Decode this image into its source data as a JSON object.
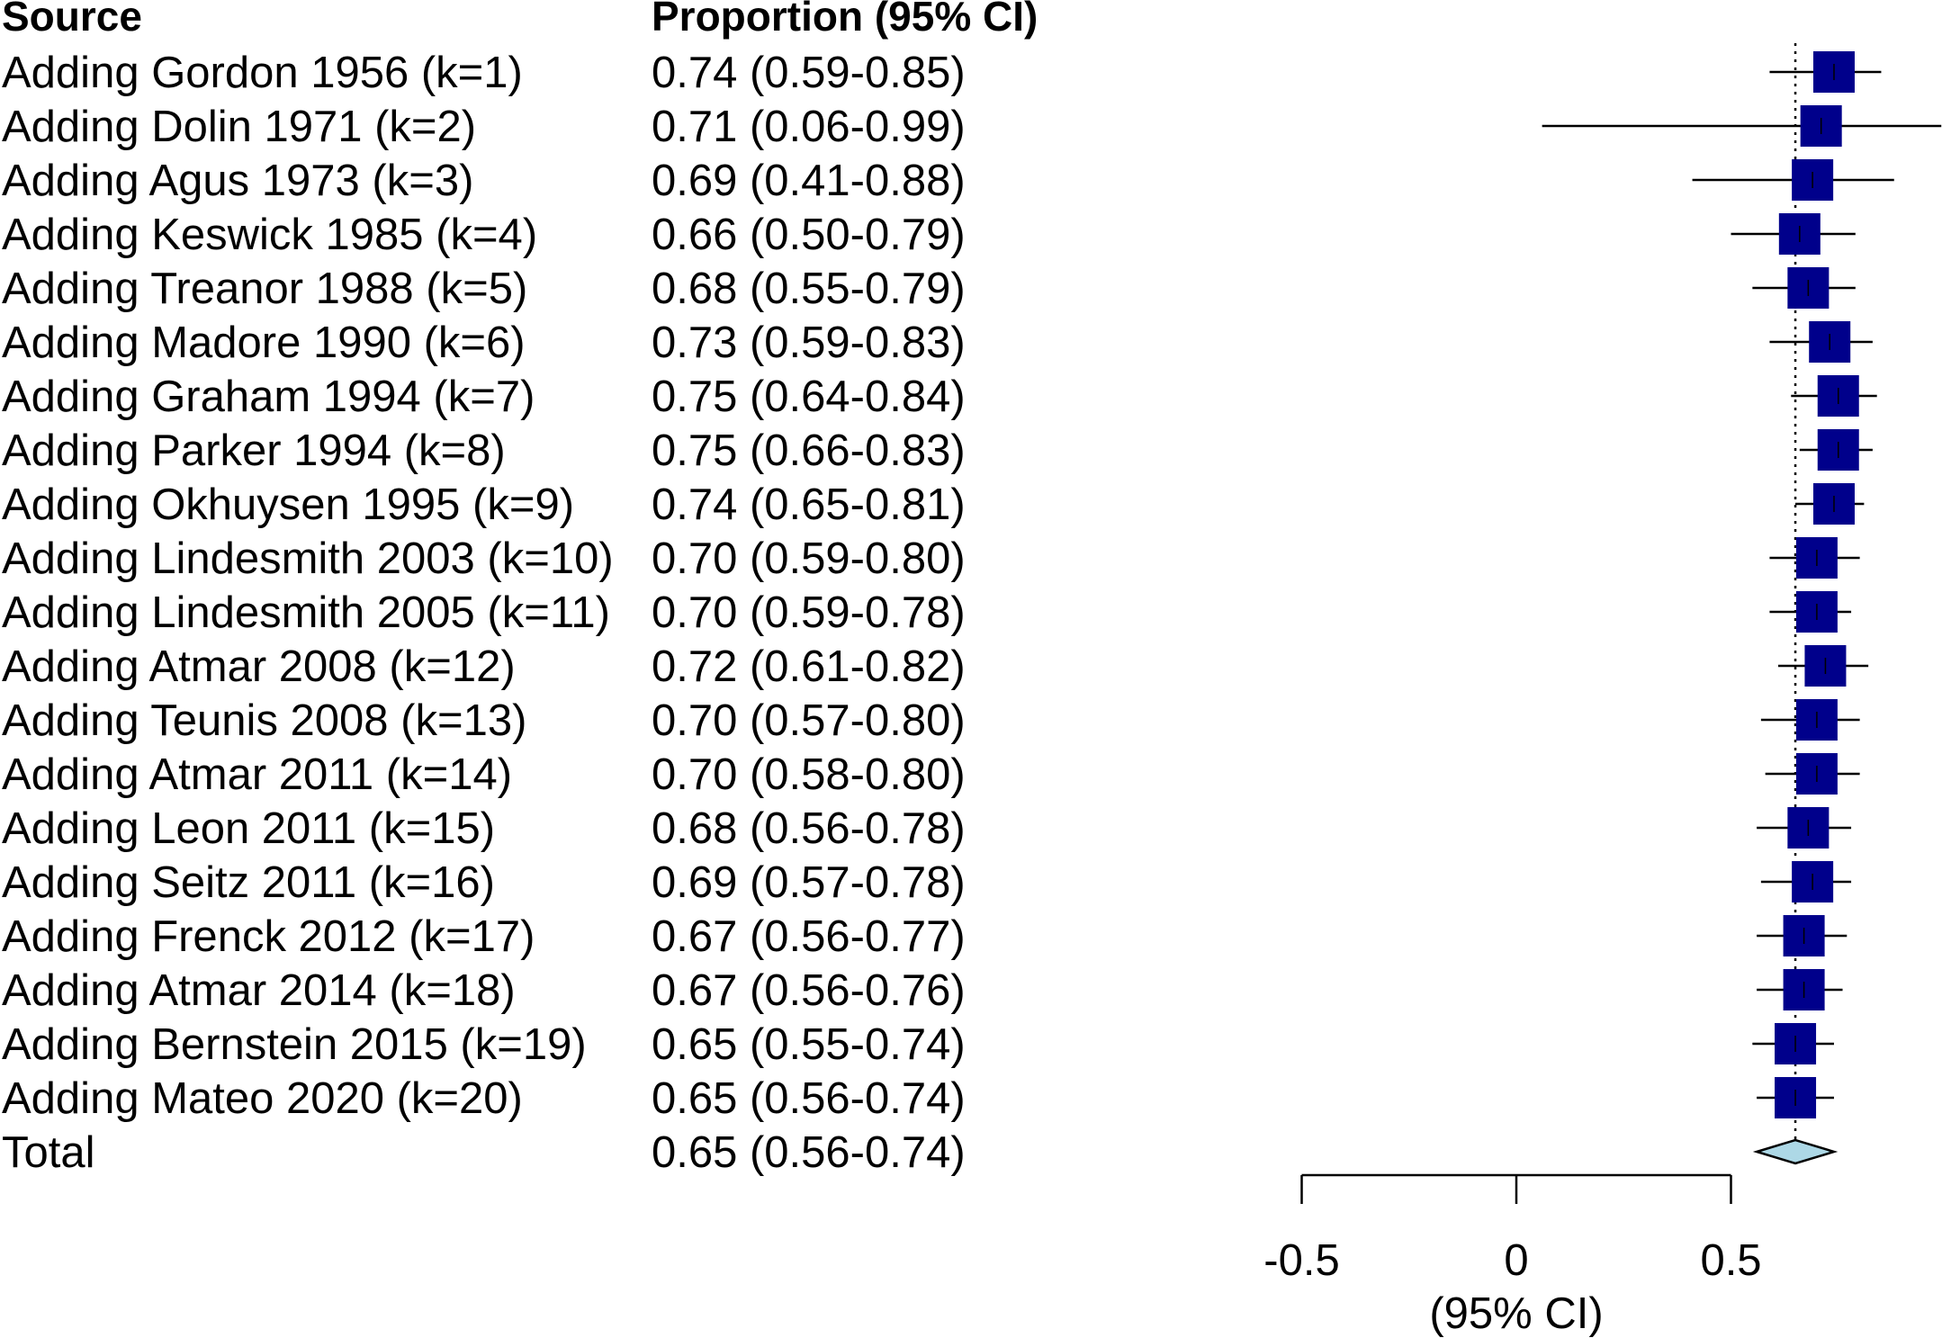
{
  "chart_data": {
    "type": "forest",
    "headers": {
      "source": "Source",
      "estimate": "Proportion (95% CI)"
    },
    "rows": [
      {
        "label": "Adding Gordon 1956 (k=1)",
        "ci_text": "0.74 (0.59-0.85)",
        "est": 0.74,
        "lo": 0.59,
        "hi": 0.85
      },
      {
        "label": "Adding Dolin 1971 (k=2)",
        "ci_text": "0.71 (0.06-0.99)",
        "est": 0.71,
        "lo": 0.06,
        "hi": 0.99
      },
      {
        "label": "Adding Agus 1973 (k=3)",
        "ci_text": "0.69 (0.41-0.88)",
        "est": 0.69,
        "lo": 0.41,
        "hi": 0.88
      },
      {
        "label": "Adding Keswick 1985 (k=4)",
        "ci_text": "0.66 (0.50-0.79)",
        "est": 0.66,
        "lo": 0.5,
        "hi": 0.79
      },
      {
        "label": "Adding Treanor 1988 (k=5)",
        "ci_text": "0.68 (0.55-0.79)",
        "est": 0.68,
        "lo": 0.55,
        "hi": 0.79
      },
      {
        "label": "Adding Madore 1990 (k=6)",
        "ci_text": "0.73 (0.59-0.83)",
        "est": 0.73,
        "lo": 0.59,
        "hi": 0.83
      },
      {
        "label": "Adding Graham 1994 (k=7)",
        "ci_text": "0.75 (0.64-0.84)",
        "est": 0.75,
        "lo": 0.64,
        "hi": 0.84
      },
      {
        "label": "Adding Parker 1994 (k=8)",
        "ci_text": "0.75 (0.66-0.83)",
        "est": 0.75,
        "lo": 0.66,
        "hi": 0.83
      },
      {
        "label": "Adding Okhuysen 1995 (k=9)",
        "ci_text": "0.74 (0.65-0.81)",
        "est": 0.74,
        "lo": 0.65,
        "hi": 0.81
      },
      {
        "label": "Adding Lindesmith 2003 (k=10)",
        "ci_text": "0.70 (0.59-0.80)",
        "est": 0.7,
        "lo": 0.59,
        "hi": 0.8
      },
      {
        "label": "Adding Lindesmith 2005 (k=11)",
        "ci_text": "0.70 (0.59-0.78)",
        "est": 0.7,
        "lo": 0.59,
        "hi": 0.78
      },
      {
        "label": "Adding Atmar 2008 (k=12)",
        "ci_text": "0.72 (0.61-0.82)",
        "est": 0.72,
        "lo": 0.61,
        "hi": 0.82
      },
      {
        "label": "Adding Teunis 2008 (k=13)",
        "ci_text": "0.70 (0.57-0.80)",
        "est": 0.7,
        "lo": 0.57,
        "hi": 0.8
      },
      {
        "label": "Adding Atmar 2011 (k=14)",
        "ci_text": "0.70 (0.58-0.80)",
        "est": 0.7,
        "lo": 0.58,
        "hi": 0.8
      },
      {
        "label": "Adding Leon 2011 (k=15)",
        "ci_text": "0.68 (0.56-0.78)",
        "est": 0.68,
        "lo": 0.56,
        "hi": 0.78
      },
      {
        "label": "Adding Seitz 2011 (k=16)",
        "ci_text": "0.69 (0.57-0.78)",
        "est": 0.69,
        "lo": 0.57,
        "hi": 0.78
      },
      {
        "label": "Adding Frenck 2012 (k=17)",
        "ci_text": "0.67 (0.56-0.77)",
        "est": 0.67,
        "lo": 0.56,
        "hi": 0.77
      },
      {
        "label": "Adding Atmar 2014 (k=18)",
        "ci_text": "0.67 (0.56-0.76)",
        "est": 0.67,
        "lo": 0.56,
        "hi": 0.76
      },
      {
        "label": "Adding Bernstein 2015 (k=19)",
        "ci_text": "0.65 (0.55-0.74)",
        "est": 0.65,
        "lo": 0.55,
        "hi": 0.74
      },
      {
        "label": "Adding Mateo 2020 (k=20)",
        "ci_text": "0.65 (0.56-0.74)",
        "est": 0.65,
        "lo": 0.56,
        "hi": 0.74
      }
    ],
    "total": {
      "label": "Total",
      "ci_text": "0.65 (0.56-0.74)",
      "est": 0.65,
      "lo": 0.56,
      "hi": 0.74
    },
    "x_axis": {
      "ticks": [
        -0.5,
        0,
        0.5
      ],
      "tick_labels": [
        "-0.5",
        "0",
        "0.5"
      ],
      "label": "(95% CI)"
    },
    "reference_line": 0.65,
    "colors": {
      "marker": "#00008b",
      "diamond": "#add8e6",
      "line": "#000000"
    }
  }
}
